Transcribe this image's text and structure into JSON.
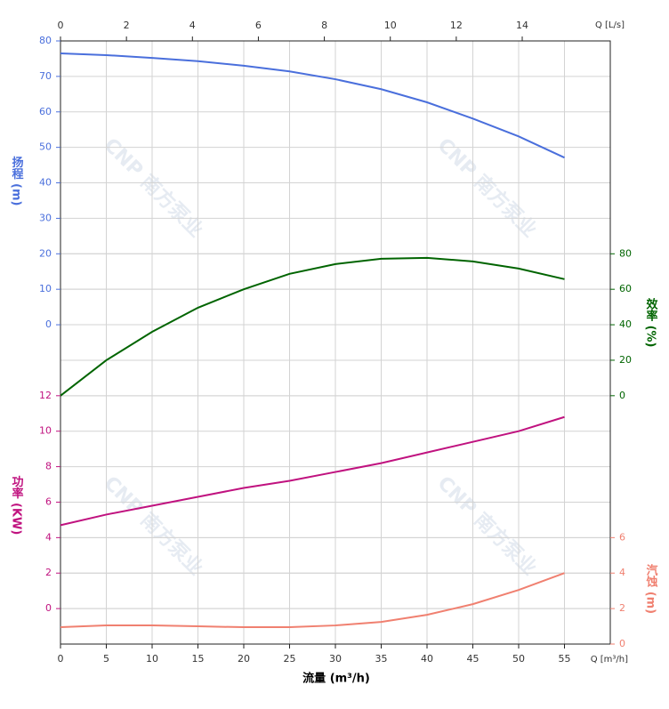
{
  "chart_data": {
    "type": "line",
    "xlabel": "流量 (m³/h)",
    "x_unit_label": "Q [m³/h]",
    "x2_unit_label": "Q [L/s]",
    "watermark": "CNP 南方泵业",
    "xlim": [
      0,
      60
    ],
    "xticks": [
      0,
      5,
      10,
      15,
      20,
      25,
      30,
      35,
      40,
      45,
      50,
      55
    ],
    "x2lim": [
      0,
      16.67
    ],
    "x2ticks": [
      0,
      2,
      4,
      6,
      8,
      10,
      12,
      14
    ],
    "grid": true,
    "x": [
      0,
      5,
      10,
      15,
      20,
      25,
      30,
      35,
      40,
      45,
      50,
      55
    ],
    "series": [
      {
        "name": "扬程 (m)",
        "color": "#4a6fdc",
        "side": "left",
        "ylim": [
          -90,
          80
        ],
        "yticks": [
          0,
          10,
          20,
          30,
          40,
          50,
          60,
          70,
          80
        ],
        "values": [
          76.5,
          76,
          75.2,
          74.3,
          73,
          71.4,
          69.2,
          66.4,
          62.7,
          58.1,
          53.1,
          47.1
        ]
      },
      {
        "name": "效率 (%)",
        "color": "#006400",
        "side": "right",
        "ylim": [
          -140,
          200
        ],
        "yticks": [
          0,
          20,
          40,
          60,
          80
        ],
        "values": [
          0,
          20,
          36,
          49.6,
          60,
          68.7,
          74.2,
          77.2,
          77.7,
          75.7,
          71.7,
          65.7
        ]
      },
      {
        "name": "功率 (KW)",
        "color": "#c0127f",
        "side": "left",
        "ylim": [
          -2,
          32
        ],
        "yticks": [
          0,
          2,
          4,
          6,
          8,
          10,
          12
        ],
        "values": [
          4.7,
          5.3,
          5.8,
          6.3,
          6.8,
          7.2,
          7.7,
          8.2,
          8.8,
          9.4,
          10.0,
          10.8
        ]
      },
      {
        "name": "汽蚀 (m)",
        "color": "#f08070",
        "side": "right",
        "ylim": [
          0,
          34
        ],
        "yticks": [
          0,
          2,
          4,
          6
        ],
        "values": [
          0.95,
          1.05,
          1.05,
          1.0,
          0.95,
          0.95,
          1.05,
          1.25,
          1.65,
          2.25,
          3.05,
          4.0
        ]
      }
    ]
  }
}
